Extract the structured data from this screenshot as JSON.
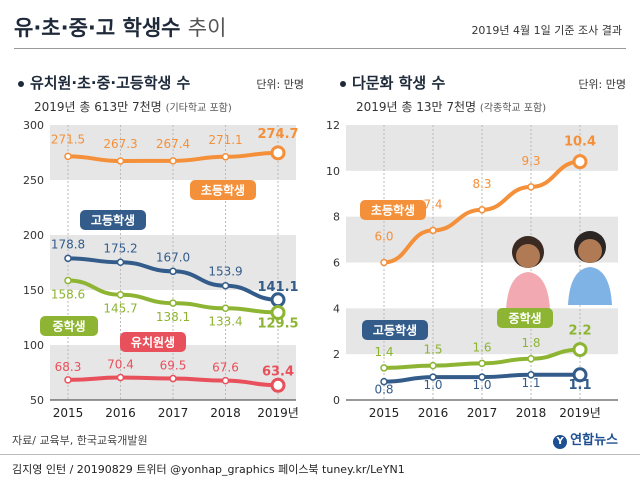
{
  "header": {
    "title_main": "유·초·중·고 학생수",
    "title_light": "추이",
    "basis": "2019년 4월 1일 기준 조사 결과"
  },
  "colors": {
    "elementary": "#f4903a",
    "high": "#345c8a",
    "middle": "#8db533",
    "kinder": "#e8505b",
    "band": "#e6e6e6",
    "text_dark": "#1e2a3a"
  },
  "chart_data": [
    {
      "type": "line",
      "title": "유치원·초·중·고등학생 수",
      "unit": "단위: 만명",
      "subtitle_main": "2019년 총 613만 7천명",
      "subtitle_note": "(기타학교 포함)",
      "categories": [
        "2015",
        "2016",
        "2017",
        "2018",
        "2019년"
      ],
      "ylim": [
        50,
        300
      ],
      "yticks": [
        "50",
        "100",
        "150",
        "200",
        "250",
        "300"
      ],
      "grid": "alternating bands",
      "series": [
        {
          "name": "초등학생",
          "color_key": "elementary",
          "values": [
            271.5,
            267.3,
            267.4,
            271.1,
            274.7
          ],
          "labels": [
            "271.5",
            "267.3",
            "267.4",
            "271.1",
            "274.7"
          ]
        },
        {
          "name": "고등학생",
          "color_key": "high",
          "values": [
            178.8,
            175.2,
            167.0,
            153.9,
            141.1
          ],
          "labels": [
            "178.8",
            "175.2",
            "167.0",
            "153.9",
            "141.1"
          ]
        },
        {
          "name": "중학생",
          "color_key": "middle",
          "values": [
            158.6,
            145.7,
            138.1,
            133.4,
            129.5
          ],
          "labels": [
            "158.6",
            "145.7",
            "138.1",
            "133.4",
            "129.5"
          ]
        },
        {
          "name": "유치원생",
          "color_key": "kinder",
          "values": [
            68.3,
            70.4,
            69.5,
            67.6,
            63.4
          ],
          "labels": [
            "68.3",
            "70.4",
            "69.5",
            "67.6",
            "63.4"
          ]
        }
      ]
    },
    {
      "type": "line",
      "title": "다문화 학생 수",
      "unit": "단위: 만명",
      "subtitle_main": "2019년 총 13만 7천명",
      "subtitle_note": "(각종학교 포함)",
      "categories": [
        "2015",
        "2016",
        "2017",
        "2018",
        "2019년"
      ],
      "ylim": [
        0,
        12
      ],
      "yticks": [
        "0",
        "2",
        "4",
        "6",
        "8",
        "10",
        "12"
      ],
      "grid": "alternating bands",
      "series": [
        {
          "name": "초등학생",
          "color_key": "elementary",
          "values": [
            6.0,
            7.4,
            8.3,
            9.3,
            10.4
          ],
          "labels": [
            "6.0",
            "7.4",
            "8.3",
            "9.3",
            "10.4"
          ]
        },
        {
          "name": "중학생",
          "color_key": "middle",
          "values": [
            1.4,
            1.5,
            1.6,
            1.8,
            2.2
          ],
          "labels": [
            "1.4",
            "1.5",
            "1.6",
            "1.8",
            "2.2"
          ]
        },
        {
          "name": "고등학생",
          "color_key": "high",
          "values": [
            0.8,
            1.0,
            1.0,
            1.1,
            1.1
          ],
          "labels": [
            "0.8",
            "1.0",
            "1.0",
            "1.1",
            "1.1"
          ]
        }
      ]
    }
  ],
  "footer": {
    "source": "자료/ 교육부, 한국교육개발원",
    "logo": "연합뉴스",
    "logo_mark": "Y",
    "credit": "김지영 인턴 / 20190829 트위터 @yonhap_graphics 페이스북 tuney.kr/LeYN1"
  }
}
